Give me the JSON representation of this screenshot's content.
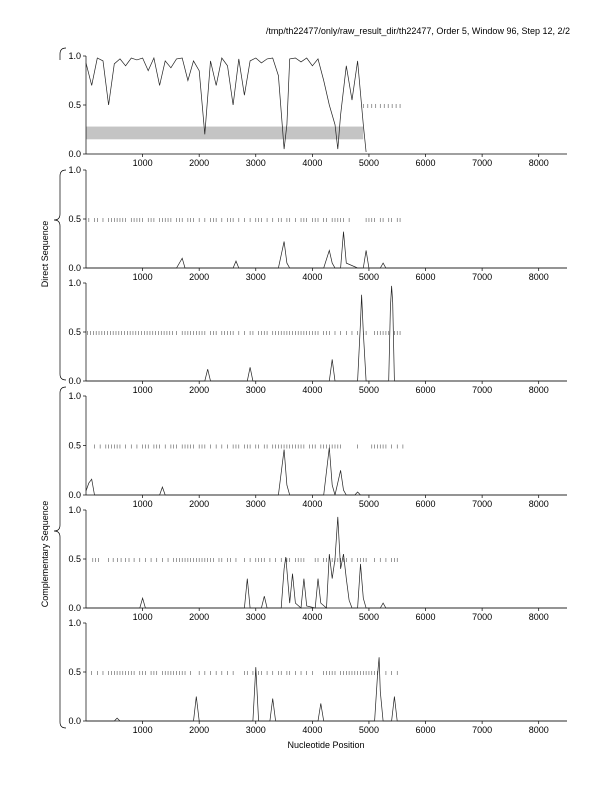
{
  "header": {
    "title": "/tmp/th22477/only/raw_result_dir/th22477, Order 5, Window 96, Step 12, 2/2"
  },
  "figure": {
    "xlabel": "Nucleotide Position",
    "group_labels": [
      "Direct Sequence",
      "Complementary Sequence"
    ]
  },
  "chart_data": [
    {
      "type": "line",
      "panel": 1,
      "group": "",
      "xlim": [
        0,
        8500
      ],
      "ylim": [
        0,
        1
      ],
      "xticks": [
        1000,
        2000,
        3000,
        4000,
        5000,
        6000,
        7000,
        8000
      ],
      "yticks": [
        "0.0",
        "0.5",
        "1.0"
      ],
      "series": [
        {
          "x": [
            0,
            100,
            200,
            300,
            400,
            500,
            600,
            700,
            800,
            900,
            1000,
            1100,
            1200,
            1300,
            1400,
            1500,
            1600,
            1700,
            1800,
            1900,
            2000,
            2100,
            2200,
            2300,
            2400,
            2500,
            2600,
            2700,
            2800,
            2900,
            3000,
            3100,
            3200,
            3300,
            3400,
            3500,
            3550,
            3600,
            3700,
            3800,
            3900,
            4000,
            4100,
            4200,
            4300,
            4400,
            4450,
            4500,
            4600,
            4700,
            4800,
            4900,
            4950
          ],
          "y": [
            0.93,
            0.7,
            0.98,
            0.95,
            0.5,
            0.92,
            0.97,
            0.9,
            0.98,
            0.96,
            0.98,
            0.85,
            0.98,
            0.7,
            0.95,
            0.88,
            0.97,
            0.98,
            0.75,
            0.95,
            0.85,
            0.2,
            0.95,
            0.7,
            0.98,
            0.9,
            0.5,
            0.97,
            0.6,
            0.95,
            0.98,
            0.93,
            0.97,
            0.98,
            0.8,
            0.05,
            0.3,
            0.97,
            0.98,
            0.94,
            0.98,
            0.9,
            0.97,
            0.75,
            0.5,
            0.3,
            0.05,
            0.4,
            0.9,
            0.55,
            0.95,
            0.3,
            0.02
          ]
        }
      ],
      "shaded_band": {
        "x": [
          0,
          4900
        ],
        "y": [
          0.15,
          0.28
        ]
      },
      "tick_row": {
        "y": 0.49,
        "x": [
          4900,
          4980,
          5050,
          5120,
          5200,
          5270,
          5340,
          5410,
          5480,
          5550
        ]
      }
    },
    {
      "type": "line",
      "panel": 2,
      "group": "Direct Sequence",
      "xlim": [
        0,
        8500
      ],
      "ylim": [
        0,
        1
      ],
      "xticks": [
        1000,
        2000,
        3000,
        4000,
        5000,
        6000,
        7000,
        8000
      ],
      "yticks": [
        "0.0",
        "0.5",
        "1.0"
      ],
      "series": [
        {
          "x": [
            0,
            1600,
            1700,
            1750,
            1800,
            2600,
            2650,
            2700,
            3400,
            3500,
            3550,
            3600,
            4200,
            4300,
            4350,
            4400,
            4500,
            4550,
            4600,
            4800,
            4900,
            4950,
            5000,
            5200,
            5250,
            5300,
            8500
          ],
          "y": [
            0,
            0,
            0.1,
            0,
            0,
            0,
            0.07,
            0,
            0,
            0.27,
            0.05,
            0,
            0,
            0.18,
            0.05,
            0,
            0,
            0.37,
            0.05,
            0,
            0,
            0.18,
            0,
            0,
            0.05,
            0,
            0
          ]
        }
      ],
      "tick_row": {
        "y": 0.49,
        "x": [
          50,
          150,
          200,
          300,
          400,
          450,
          500,
          550,
          600,
          650,
          700,
          800,
          850,
          900,
          950,
          1000,
          1100,
          1150,
          1200,
          1300,
          1350,
          1400,
          1450,
          1500,
          1600,
          1650,
          1700,
          1800,
          1850,
          1900,
          2000,
          2100,
          2200,
          2250,
          2300,
          2400,
          2500,
          2550,
          2600,
          2700,
          2800,
          2900,
          3000,
          3050,
          3100,
          3200,
          3300,
          3400,
          3450,
          3550,
          3600,
          3700,
          3800,
          3850,
          3900,
          4000,
          4050,
          4100,
          4200,
          4250,
          4350,
          4400,
          4450,
          4500,
          4550,
          4650,
          4950,
          5000,
          5050,
          5100,
          5200,
          5250,
          5350,
          5400,
          5500,
          5550
        ]
      }
    },
    {
      "type": "line",
      "panel": 3,
      "group": "Direct Sequence",
      "xlim": [
        0,
        8500
      ],
      "ylim": [
        0,
        1
      ],
      "xticks": [
        1000,
        2000,
        3000,
        4000,
        5000,
        6000,
        7000,
        8000
      ],
      "yticks": [
        "0.0",
        "0.5",
        "1.0"
      ],
      "series": [
        {
          "x": [
            0,
            2100,
            2150,
            2200,
            2850,
            2900,
            2950,
            4300,
            4350,
            4400,
            4800,
            4850,
            4870,
            4900,
            4950,
            5350,
            5380,
            5400,
            5420,
            5450,
            8500
          ],
          "y": [
            0,
            0,
            0.12,
            0,
            0,
            0.14,
            0,
            0,
            0.22,
            0,
            0,
            0.6,
            0.88,
            0.5,
            0,
            0,
            0.75,
            0.97,
            0.8,
            0,
            0
          ]
        }
      ],
      "tick_row": {
        "y": 0.49,
        "x": [
          30,
          80,
          130,
          180,
          230,
          280,
          330,
          380,
          430,
          480,
          530,
          580,
          630,
          680,
          730,
          780,
          830,
          880,
          930,
          980,
          1030,
          1080,
          1130,
          1180,
          1230,
          1280,
          1330,
          1380,
          1430,
          1480,
          1530,
          1600,
          1700,
          1750,
          1800,
          1850,
          1900,
          1950,
          2000,
          2050,
          2100,
          2200,
          2250,
          2300,
          2400,
          2450,
          2500,
          2550,
          2600,
          2700,
          2800,
          2900,
          2950,
          3050,
          3100,
          3150,
          3200,
          3300,
          3350,
          3400,
          3450,
          3500,
          3550,
          3600,
          3650,
          3700,
          3750,
          3800,
          3850,
          3900,
          3950,
          4000,
          4050,
          4100,
          4200,
          4250,
          4300,
          4400,
          4500,
          4600,
          4700,
          4800,
          4900,
          4950,
          5100,
          5150,
          5200,
          5250,
          5300,
          5350,
          5450,
          5500,
          5550
        ]
      }
    },
    {
      "type": "line",
      "panel": 4,
      "group": "Complementary Sequence",
      "xlim": [
        0,
        8500
      ],
      "ylim": [
        0,
        1
      ],
      "xticks": [
        1000,
        2000,
        3000,
        4000,
        5000,
        6000,
        7000,
        8000
      ],
      "yticks": [
        "0.0",
        "0.5",
        "1.0"
      ],
      "series": [
        {
          "x": [
            0,
            50,
            100,
            150,
            1300,
            1350,
            1400,
            3400,
            3500,
            3550,
            3600,
            4200,
            4300,
            4350,
            4400,
            4500,
            4550,
            4600,
            4750,
            4800,
            4850,
            8500
          ],
          "y": [
            0.04,
            0.12,
            0.16,
            0,
            0,
            0.08,
            0,
            0,
            0.46,
            0.1,
            0,
            0,
            0.48,
            0.1,
            0,
            0.25,
            0.05,
            0,
            0,
            0.03,
            0,
            0
          ]
        }
      ],
      "tick_row": {
        "y": 0.49,
        "x": [
          150,
          250,
          350,
          400,
          450,
          500,
          550,
          600,
          700,
          800,
          900,
          1000,
          1050,
          1100,
          1200,
          1250,
          1300,
          1400,
          1500,
          1550,
          1600,
          1700,
          1750,
          1800,
          1850,
          1900,
          2000,
          2050,
          2100,
          2200,
          2300,
          2400,
          2500,
          2600,
          2650,
          2700,
          2800,
          2850,
          2900,
          3000,
          3050,
          3150,
          3200,
          3300,
          3350,
          3400,
          3450,
          3500,
          3550,
          3600,
          3650,
          3700,
          3750,
          3800,
          3850,
          3950,
          4000,
          4050,
          4150,
          4200,
          4250,
          4300,
          4350,
          4400,
          4450,
          4500,
          4800,
          5050,
          5100,
          5150,
          5200,
          5250,
          5300,
          5400,
          5500,
          5600
        ]
      }
    },
    {
      "type": "line",
      "panel": 5,
      "group": "Complementary Sequence",
      "xlim": [
        0,
        8500
      ],
      "ylim": [
        0,
        1
      ],
      "xticks": [
        1000,
        2000,
        3000,
        4000,
        5000,
        6000,
        7000,
        8000
      ],
      "yticks": [
        "0.0",
        "0.5",
        "1.0"
      ],
      "series": [
        {
          "x": [
            0,
            950,
            1000,
            1050,
            2800,
            2850,
            2900,
            3100,
            3150,
            3200,
            3450,
            3500,
            3530,
            3600,
            3650,
            3700,
            3800,
            3850,
            3900,
            4050,
            4100,
            4150,
            4250,
            4300,
            4350,
            4400,
            4450,
            4500,
            4550,
            4600,
            4650,
            4700,
            4800,
            4850,
            4900,
            4950,
            5200,
            5250,
            5300,
            8500
          ],
          "y": [
            0,
            0,
            0.1,
            0,
            0,
            0.3,
            0,
            0,
            0.12,
            0,
            0,
            0.4,
            0.52,
            0.05,
            0.35,
            0.05,
            0,
            0.3,
            0.02,
            0,
            0.3,
            0.05,
            0,
            0.55,
            0.3,
            0.5,
            0.93,
            0.4,
            0.55,
            0.3,
            0.08,
            0,
            0,
            0.45,
            0.1,
            0,
            0,
            0.05,
            0,
            0
          ]
        }
      ],
      "tick_row": {
        "y": 0.49,
        "x": [
          120,
          170,
          220,
          400,
          480,
          560,
          620,
          700,
          760,
          850,
          950,
          1050,
          1150,
          1250,
          1350,
          1450,
          1550,
          1600,
          1650,
          1700,
          1750,
          1800,
          1850,
          1900,
          1950,
          2000,
          2050,
          2100,
          2150,
          2200,
          2250,
          2350,
          2400,
          2500,
          2550,
          2650,
          2800,
          2900,
          3000,
          3050,
          3100,
          3150,
          3250,
          3350,
          3450,
          3550,
          3600,
          3700,
          3750,
          3800,
          3850,
          4050,
          4100,
          4200,
          4250,
          4350,
          4400,
          4450,
          4500,
          4550,
          4600,
          4700,
          4800,
          4850,
          4900,
          4950,
          5100,
          5200,
          5300,
          5400,
          5450,
          5500
        ]
      }
    },
    {
      "type": "line",
      "panel": 6,
      "group": "Complementary Sequence",
      "xlim": [
        0,
        8500
      ],
      "ylim": [
        0,
        1
      ],
      "xticks": [
        1000,
        2000,
        3000,
        4000,
        5000,
        6000,
        7000,
        8000
      ],
      "yticks": [
        "0.0",
        "0.5",
        "1.0"
      ],
      "series": [
        {
          "x": [
            0,
            500,
            550,
            600,
            1900,
            1950,
            2000,
            2950,
            3000,
            3050,
            3250,
            3300,
            3350,
            4100,
            4150,
            4200,
            5100,
            5150,
            5180,
            5200,
            5250,
            5400,
            5450,
            5500,
            8500
          ],
          "y": [
            0,
            0,
            0.03,
            0,
            0,
            0.25,
            0,
            0,
            0.55,
            0,
            0,
            0.23,
            0,
            0,
            0.18,
            0,
            0,
            0.45,
            0.65,
            0.3,
            0,
            0,
            0.25,
            0,
            0
          ]
        }
      ],
      "tick_row": {
        "y": 0.49,
        "x": [
          100,
          200,
          300,
          400,
          450,
          500,
          550,
          600,
          650,
          700,
          750,
          800,
          850,
          950,
          1000,
          1050,
          1150,
          1200,
          1250,
          1350,
          1400,
          1450,
          1500,
          1550,
          1600,
          1650,
          1700,
          1750,
          1850,
          2000,
          2100,
          2200,
          2300,
          2400,
          2500,
          2600,
          2800,
          2850,
          2950,
          3050,
          3100,
          3200,
          3300,
          3400,
          3450,
          3550,
          3600,
          3700,
          3800,
          3900,
          4000,
          4200,
          4250,
          4300,
          4350,
          4400,
          4500,
          4550,
          4600,
          4650,
          4700,
          4750,
          4800,
          4850,
          4900,
          4950,
          5000,
          5050,
          5100,
          5150,
          5300,
          5400,
          5500
        ]
      }
    }
  ]
}
